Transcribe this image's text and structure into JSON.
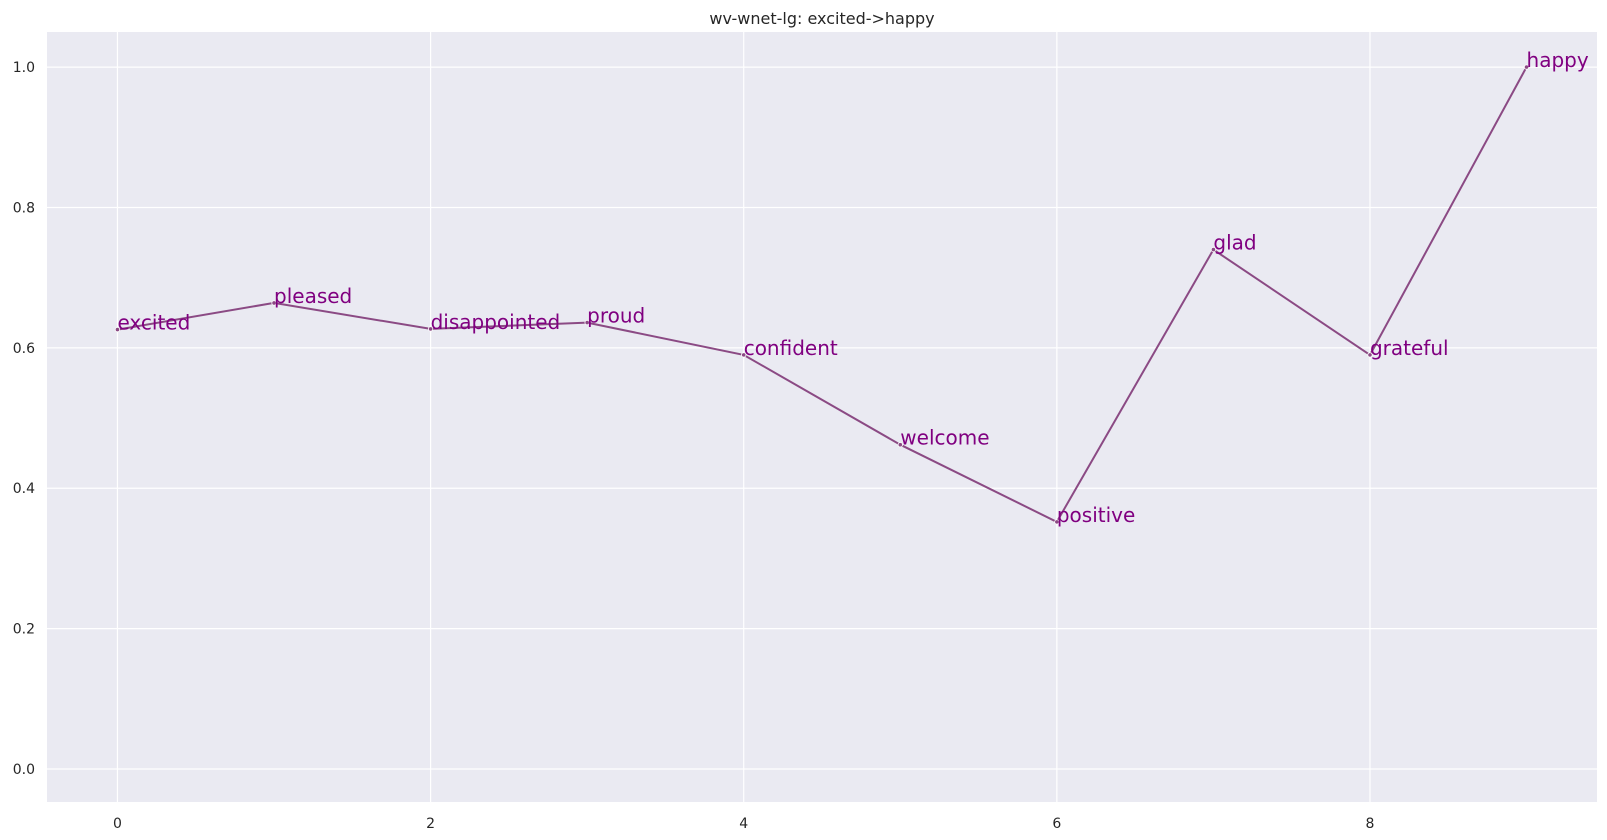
{
  "chart_data": {
    "type": "line",
    "title": "wv-wnet-lg: excited->happy",
    "xlabel": "",
    "ylabel": "",
    "grid": true,
    "xlim": [
      -0.45,
      9.45
    ],
    "ylim": [
      -0.047,
      1.05
    ],
    "x_ticks": [
      0,
      2,
      4,
      6,
      8
    ],
    "y_ticks": [
      0.0,
      0.2,
      0.4,
      0.6,
      0.8,
      1.0
    ],
    "x": [
      0,
      1,
      2,
      3,
      4,
      5,
      6,
      7,
      8,
      9
    ],
    "y": [
      0.626,
      0.664,
      0.627,
      0.636,
      0.59,
      0.462,
      0.352,
      0.74,
      0.59,
      1.0
    ],
    "labels": [
      "excited",
      "pleased",
      "disappointed",
      "proud",
      "confident",
      "welcome",
      "positive",
      "glad",
      "grateful",
      "happy"
    ],
    "colors": {
      "background": "#eaeaf2",
      "grid": "#ffffff",
      "line": "#8b4a84",
      "label": "#800080"
    }
  }
}
